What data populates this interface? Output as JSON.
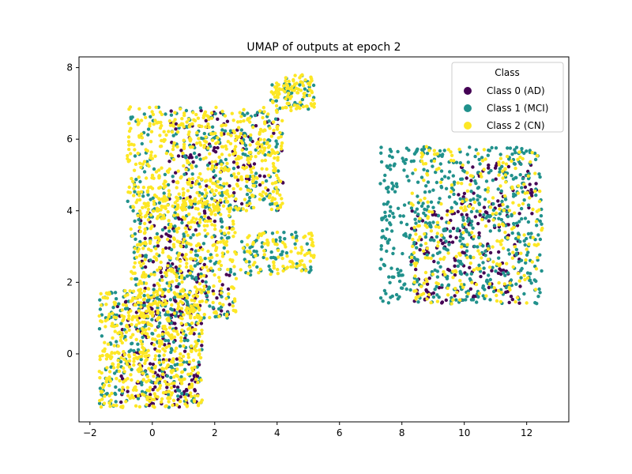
{
  "chart_data": {
    "type": "scatter",
    "title": "UMAP of outputs at epoch 2",
    "xlabel": "",
    "ylabel": "",
    "xlim": [
      -2.35,
      13.35
    ],
    "ylim": [
      -1.9,
      8.3
    ],
    "x_ticks": [
      -2,
      0,
      2,
      4,
      6,
      8,
      10,
      12
    ],
    "y_ticks": [
      0,
      2,
      4,
      6,
      8
    ],
    "grid": false,
    "legend": {
      "title": "Class",
      "placement": "top-right"
    },
    "series": [
      {
        "name": "Class 0 (AD)",
        "color": "#440154",
        "point_count": 600,
        "regions": [
          {
            "x": [
              -1.2,
              1.6
            ],
            "y": [
              -1.5,
              1.5
            ],
            "weight": 0.25
          },
          {
            "x": [
              -0.5,
              2.5
            ],
            "y": [
              1.0,
              4.0
            ],
            "weight": 0.22
          },
          {
            "x": [
              0.5,
              4.2
            ],
            "y": [
              4.0,
              6.8
            ],
            "weight": 0.18
          },
          {
            "x": [
              8.3,
              11.8
            ],
            "y": [
              1.4,
              4.0
            ],
            "weight": 0.25
          },
          {
            "x": [
              9.8,
              12.4
            ],
            "y": [
              3.6,
              5.4
            ],
            "weight": 0.1
          }
        ]
      },
      {
        "name": "Class 1 (MCI)",
        "color": "#21918c",
        "point_count": 1300,
        "regions": [
          {
            "x": [
              -1.7,
              1.6
            ],
            "y": [
              -1.5,
              1.8
            ],
            "weight": 0.16
          },
          {
            "x": [
              -0.7,
              2.7
            ],
            "y": [
              1.0,
              4.5
            ],
            "weight": 0.14
          },
          {
            "x": [
              -0.8,
              4.2
            ],
            "y": [
              4.0,
              6.9
            ],
            "weight": 0.17
          },
          {
            "x": [
              7.3,
              12.5
            ],
            "y": [
              1.4,
              5.8
            ],
            "weight": 0.45
          },
          {
            "x": [
              2.8,
              5.2
            ],
            "y": [
              2.2,
              3.4
            ],
            "weight": 0.05
          },
          {
            "x": [
              3.8,
              5.2
            ],
            "y": [
              6.8,
              7.8
            ],
            "weight": 0.03
          }
        ]
      },
      {
        "name": "Class 2 (CN)",
        "color": "#fde725",
        "point_count": 1900,
        "regions": [
          {
            "x": [
              -1.7,
              1.6
            ],
            "y": [
              -1.5,
              1.8
            ],
            "weight": 0.26
          },
          {
            "x": [
              -0.7,
              2.7
            ],
            "y": [
              1.0,
              4.5
            ],
            "weight": 0.21
          },
          {
            "x": [
              -0.8,
              4.2
            ],
            "y": [
              4.0,
              6.9
            ],
            "weight": 0.28
          },
          {
            "x": [
              2.8,
              5.2
            ],
            "y": [
              2.2,
              3.4
            ],
            "weight": 0.05
          },
          {
            "x": [
              3.8,
              5.2
            ],
            "y": [
              6.8,
              7.8
            ],
            "weight": 0.05
          },
          {
            "x": [
              8.3,
              12.5
            ],
            "y": [
              1.4,
              5.8
            ],
            "weight": 0.15
          }
        ]
      }
    ]
  }
}
